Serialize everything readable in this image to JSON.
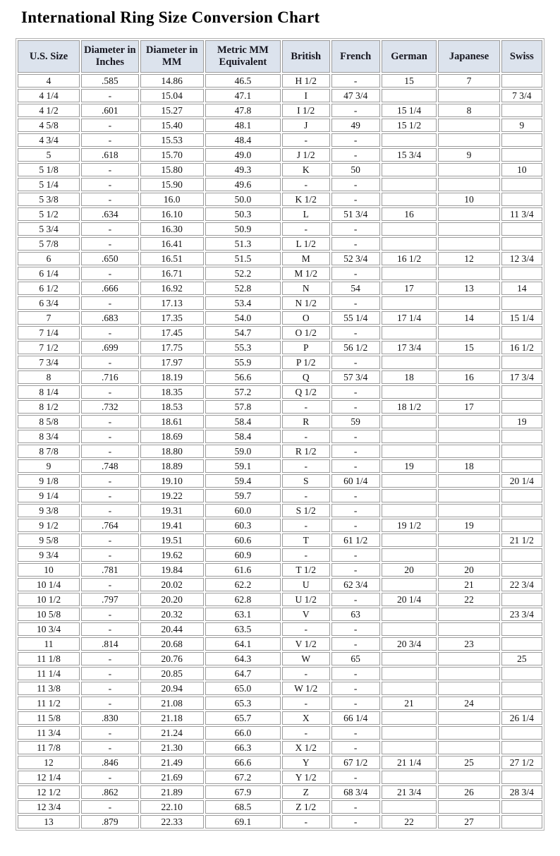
{
  "page": {
    "title": "International Ring Size Conversion Chart"
  },
  "colors": {
    "header_bg": "#dce3ed",
    "cell_border": "#9c9c9c",
    "header_text": "#16161f",
    "body_text": "#111111",
    "page_bg": "#ffffff"
  },
  "table": {
    "columns": [
      "U.S. Size",
      "Diameter in Inches",
      "Diameter in MM",
      "Metric MM Equivalent",
      "British",
      "French",
      "German",
      "Japanese",
      "Swiss"
    ],
    "rows": [
      [
        "4",
        ".585",
        "14.86",
        "46.5",
        "H 1/2",
        "-",
        "15",
        "7",
        ""
      ],
      [
        "4 1/4",
        "-",
        "15.04",
        "47.1",
        "I",
        "47 3/4",
        "",
        "",
        "7 3/4"
      ],
      [
        "4 1/2",
        ".601",
        "15.27",
        "47.8",
        "I 1/2",
        "-",
        "15 1/4",
        "8",
        ""
      ],
      [
        "4 5/8",
        "-",
        "15.40",
        "48.1",
        "J",
        "49",
        "15 1/2",
        "",
        "9"
      ],
      [
        "4 3/4",
        "-",
        "15.53",
        "48.4",
        "-",
        "-",
        "",
        "",
        ""
      ],
      [
        "5",
        ".618",
        "15.70",
        "49.0",
        "J 1/2",
        "-",
        "15 3/4",
        "9",
        ""
      ],
      [
        "5 1/8",
        "-",
        "15.80",
        "49.3",
        "K",
        "50",
        "",
        "",
        "10"
      ],
      [
        "5 1/4",
        "-",
        "15.90",
        "49.6",
        "-",
        "-",
        "",
        "",
        ""
      ],
      [
        "5 3/8",
        "-",
        "16.0",
        "50.0",
        "K 1/2",
        "-",
        "",
        "10",
        ""
      ],
      [
        "5 1/2",
        ".634",
        "16.10",
        "50.3",
        "L",
        "51 3/4",
        "16",
        "",
        "11 3/4"
      ],
      [
        "5 3/4",
        "-",
        "16.30",
        "50.9",
        "-",
        "-",
        "",
        "",
        ""
      ],
      [
        "5 7/8",
        "-",
        "16.41",
        "51.3",
        "L 1/2",
        "-",
        "",
        "",
        ""
      ],
      [
        "6",
        ".650",
        "16.51",
        "51.5",
        "M",
        "52 3/4",
        "16 1/2",
        "12",
        "12 3/4"
      ],
      [
        "6 1/4",
        "-",
        "16.71",
        "52.2",
        "M 1/2",
        "-",
        "",
        "",
        ""
      ],
      [
        "6 1/2",
        ".666",
        "16.92",
        "52.8",
        "N",
        "54",
        "17",
        "13",
        "14"
      ],
      [
        "6 3/4",
        "-",
        "17.13",
        "53.4",
        "N 1/2",
        "-",
        "",
        "",
        ""
      ],
      [
        "7",
        ".683",
        "17.35",
        "54.0",
        "O",
        "55 1/4",
        "17 1/4",
        "14",
        "15 1/4"
      ],
      [
        "7 1/4",
        "-",
        "17.45",
        "54.7",
        "O 1/2",
        "-",
        "",
        "",
        ""
      ],
      [
        "7 1/2",
        ".699",
        "17.75",
        "55.3",
        "P",
        "56 1/2",
        "17 3/4",
        "15",
        "16 1/2"
      ],
      [
        "7 3/4",
        "-",
        "17.97",
        "55.9",
        "P 1/2",
        "-",
        "",
        "",
        ""
      ],
      [
        "8",
        ".716",
        "18.19",
        "56.6",
        "Q",
        "57 3/4",
        "18",
        "16",
        "17 3/4"
      ],
      [
        "8 1/4",
        "-",
        "18.35",
        "57.2",
        "Q 1/2",
        "-",
        "",
        "",
        ""
      ],
      [
        "8 1/2",
        ".732",
        "18.53",
        "57.8",
        "-",
        "-",
        "18 1/2",
        "17",
        ""
      ],
      [
        "8 5/8",
        "-",
        "18.61",
        "58.4",
        "R",
        "59",
        "",
        "",
        "19"
      ],
      [
        "8 3/4",
        "-",
        "18.69",
        "58.4",
        "-",
        "-",
        "",
        "",
        ""
      ],
      [
        "8 7/8",
        "-",
        "18.80",
        "59.0",
        "R 1/2",
        "-",
        "",
        "",
        ""
      ],
      [
        "9",
        ".748",
        "18.89",
        "59.1",
        "-",
        "-",
        "19",
        "18",
        ""
      ],
      [
        "9 1/8",
        "-",
        "19.10",
        "59.4",
        "S",
        "60 1/4",
        "",
        "",
        "20 1/4"
      ],
      [
        "9 1/4",
        "-",
        "19.22",
        "59.7",
        "-",
        "-",
        "",
        "",
        ""
      ],
      [
        "9 3/8",
        "-",
        "19.31",
        "60.0",
        "S 1/2",
        "-",
        "",
        "",
        ""
      ],
      [
        "9 1/2",
        ".764",
        "19.41",
        "60.3",
        "-",
        "-",
        "19 1/2",
        "19",
        ""
      ],
      [
        "9 5/8",
        "-",
        "19.51",
        "60.6",
        "T",
        "61 1/2",
        "",
        "",
        "21 1/2"
      ],
      [
        "9 3/4",
        "-",
        "19.62",
        "60.9",
        "-",
        "-",
        "",
        "",
        ""
      ],
      [
        "10",
        ".781",
        "19.84",
        "61.6",
        "T 1/2",
        "-",
        "20",
        "20",
        ""
      ],
      [
        "10 1/4",
        "-",
        "20.02",
        "62.2",
        "U",
        "62 3/4",
        "",
        "21",
        "22 3/4"
      ],
      [
        "10 1/2",
        ".797",
        "20.20",
        "62.8",
        "U 1/2",
        "-",
        "20 1/4",
        "22",
        ""
      ],
      [
        "10 5/8",
        "-",
        "20.32",
        "63.1",
        "V",
        "63",
        "",
        "",
        "23 3/4"
      ],
      [
        "10 3/4",
        "-",
        "20.44",
        "63.5",
        "-",
        "-",
        "",
        "",
        ""
      ],
      [
        "11",
        ".814",
        "20.68",
        "64.1",
        "V 1/2",
        "-",
        "20 3/4",
        "23",
        ""
      ],
      [
        "11 1/8",
        "-",
        "20.76",
        "64.3",
        "W",
        "65",
        "",
        "",
        "25"
      ],
      [
        "11 1/4",
        "-",
        "20.85",
        "64.7",
        "-",
        "-",
        "",
        "",
        ""
      ],
      [
        "11 3/8",
        "-",
        "20.94",
        "65.0",
        "W 1/2",
        "-",
        "",
        "",
        ""
      ],
      [
        "11 1/2",
        "-",
        "21.08",
        "65.3",
        "-",
        "-",
        "21",
        "24",
        ""
      ],
      [
        "11 5/8",
        ".830",
        "21.18",
        "65.7",
        "X",
        "66 1/4",
        "",
        "",
        "26 1/4"
      ],
      [
        "11 3/4",
        "-",
        "21.24",
        "66.0",
        "-",
        "-",
        "",
        "",
        ""
      ],
      [
        "11 7/8",
        "-",
        "21.30",
        "66.3",
        "X 1/2",
        "-",
        "",
        "",
        ""
      ],
      [
        "12",
        ".846",
        "21.49",
        "66.6",
        "Y",
        "67 1/2",
        "21 1/4",
        "25",
        "27 1/2"
      ],
      [
        "12 1/4",
        "-",
        "21.69",
        "67.2",
        "Y 1/2",
        "-",
        "",
        "",
        ""
      ],
      [
        "12 1/2",
        ".862",
        "21.89",
        "67.9",
        "Z",
        "68 3/4",
        "21 3/4",
        "26",
        "28 3/4"
      ],
      [
        "12 3/4",
        "-",
        "22.10",
        "68.5",
        "Z 1/2",
        "-",
        "",
        "",
        ""
      ],
      [
        "13",
        ".879",
        "22.33",
        "69.1",
        "-",
        "-",
        "22",
        "27",
        ""
      ]
    ]
  }
}
